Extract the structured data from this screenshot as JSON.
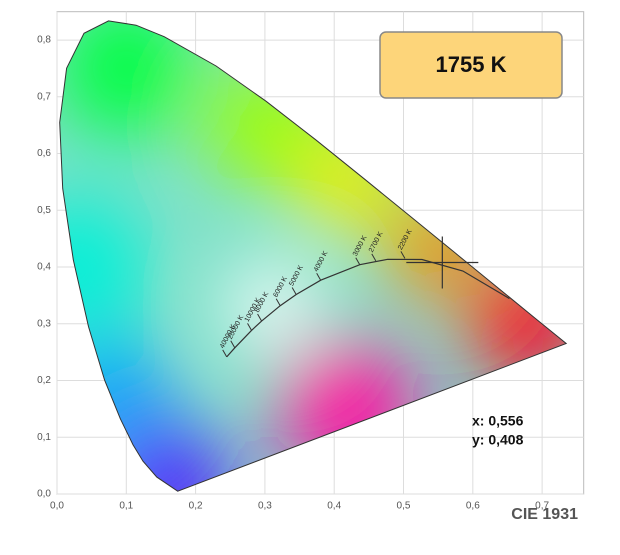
{
  "chart_data": {
    "type": "chromaticity",
    "title": "CIE 1931",
    "cct_readout": "1755 K",
    "readout_x": "x: 0,556",
    "readout_y": "y: 0,408",
    "marker": {
      "x": 0.556,
      "y": 0.408
    },
    "xlim": [
      0,
      0.76
    ],
    "ylim": [
      0,
      0.85
    ],
    "grid": true,
    "xticks": [
      {
        "value": 0,
        "label": "0,0"
      },
      {
        "value": 0.1,
        "label": "0,1"
      },
      {
        "value": 0.2,
        "label": "0,2"
      },
      {
        "value": 0.3,
        "label": "0,3"
      },
      {
        "value": 0.4,
        "label": "0,4"
      },
      {
        "value": 0.5,
        "label": "0,5"
      },
      {
        "value": 0.6,
        "label": "0,6"
      },
      {
        "value": 0.7,
        "label": "0,7"
      }
    ],
    "yticks": [
      {
        "value": 0,
        "label": "0,0"
      },
      {
        "value": 0.1,
        "label": "0,1"
      },
      {
        "value": 0.2,
        "label": "0,2"
      },
      {
        "value": 0.3,
        "label": "0,3"
      },
      {
        "value": 0.4,
        "label": "0,4"
      },
      {
        "value": 0.5,
        "label": "0,5"
      },
      {
        "value": 0.6,
        "label": "0,6"
      },
      {
        "value": 0.7,
        "label": "0,7"
      },
      {
        "value": 0.8,
        "label": "0,8"
      }
    ],
    "spectral_locus": {
      "x": [
        0.1741,
        0.144,
        0.1241,
        0.1096,
        0.0913,
        0.0687,
        0.0454,
        0.0235,
        0.0082,
        0.0039,
        0.0139,
        0.0389,
        0.0743,
        0.1142,
        0.1547,
        0.2296,
        0.3016,
        0.3731,
        0.4441,
        0.5125,
        0.5752,
        0.627,
        0.6915,
        0.7347
      ],
      "y": [
        0.005,
        0.0297,
        0.0578,
        0.0868,
        0.1327,
        0.2007,
        0.295,
        0.4127,
        0.5384,
        0.6548,
        0.7502,
        0.812,
        0.8338,
        0.8262,
        0.8059,
        0.7543,
        0.6923,
        0.6245,
        0.5547,
        0.4866,
        0.4242,
        0.3725,
        0.3083,
        0.2653
      ]
    },
    "planckian_locus": {
      "x": [
        0.6528,
        0.5857,
        0.5267,
        0.477,
        0.4369,
        0.3805,
        0.3451,
        0.3221,
        0.2952,
        0.2807,
        0.2565,
        0.2449
      ],
      "y": [
        0.3444,
        0.3931,
        0.4133,
        0.4137,
        0.4041,
        0.3768,
        0.3516,
        0.3318,
        0.3048,
        0.2884,
        0.2577,
        0.2417
      ]
    },
    "cct_labels": [
      {
        "label": "2200 K",
        "x": 0.502,
        "y": 0.4152
      },
      {
        "label": "2700 K",
        "x": 0.46,
        "y": 0.4109
      },
      {
        "label": "3000 K",
        "x": 0.4369,
        "y": 0.4041
      },
      {
        "label": "4000 K",
        "x": 0.3805,
        "y": 0.3768
      },
      {
        "label": "5000 K",
        "x": 0.3451,
        "y": 0.3516
      },
      {
        "label": "6000 K",
        "x": 0.3221,
        "y": 0.3318
      },
      {
        "label": "8000 K",
        "x": 0.2952,
        "y": 0.3048
      },
      {
        "label": "10000 K",
        "x": 0.2807,
        "y": 0.2884
      },
      {
        "label": "20000 K",
        "x": 0.2565,
        "y": 0.2577
      },
      {
        "label": "40000 K",
        "x": 0.2449,
        "y": 0.2417
      }
    ]
  }
}
